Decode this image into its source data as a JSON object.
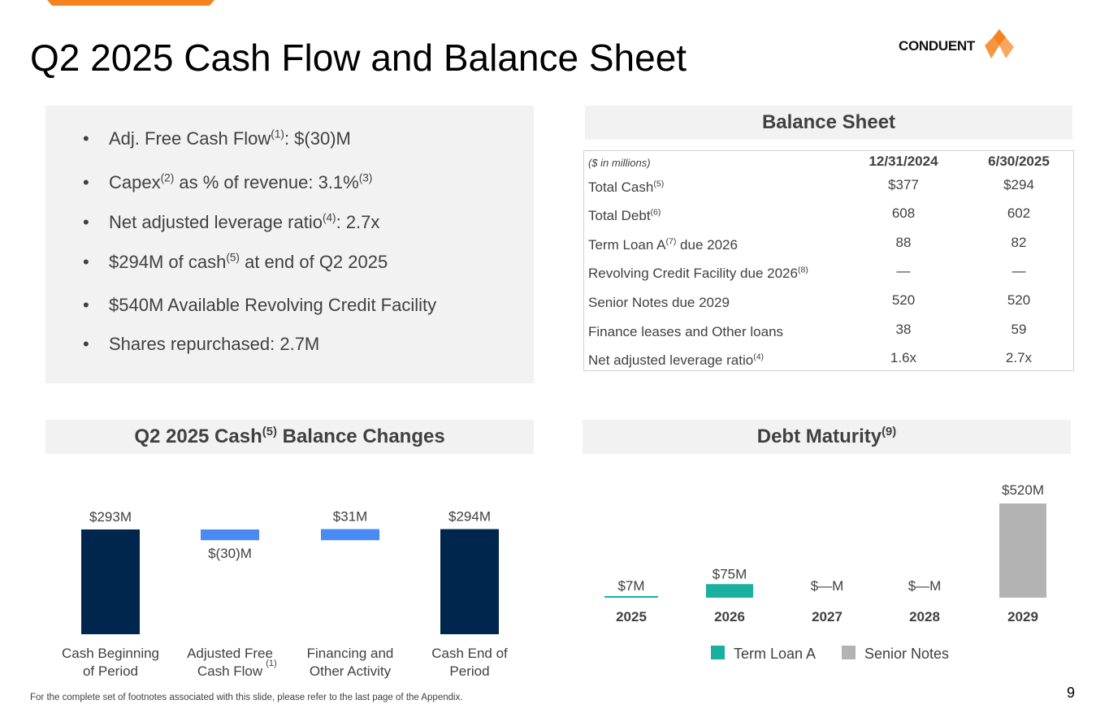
{
  "title": "Q2 2025 Cash Flow and Balance Sheet",
  "logo": {
    "text": "CONDUENT"
  },
  "bullets": [
    {
      "pre": "Adj. Free Cash Flow",
      "sup": "(1)",
      "post": ": $(30)M"
    },
    {
      "pre": "Capex",
      "sup": "(2)",
      "mid": " as % of revenue: 3.1%",
      "sup2": "(3)",
      "post": ""
    },
    {
      "pre": "Net adjusted leverage ratio",
      "sup": "(4)",
      "post": ": 2.7x"
    },
    {
      "pre": "$294M of cash",
      "sup": "(5)",
      "post": " at end of Q2 2025"
    },
    {
      "pre": "$540M Available Revolving Credit Facility",
      "sup": "",
      "post": ""
    },
    {
      "pre": "Shares repurchased: 2.7M",
      "sup": "",
      "post": ""
    }
  ],
  "balance_sheet": {
    "title": "Balance Sheet",
    "unit_note": "($ in millions)",
    "col1": "12/31/2024",
    "col2": "6/30/2025",
    "rows": [
      {
        "label": "Total Cash",
        "sup": "(5)",
        "suffix": "",
        "v1": "$377",
        "v2": "$294"
      },
      {
        "label": "Total Debt",
        "sup": "(6)",
        "suffix": "",
        "v1": "608",
        "v2": "602"
      },
      {
        "label": "Term Loan A",
        "sup": "(7)",
        "suffix": " due 2026",
        "v1": "88",
        "v2": "82"
      },
      {
        "label": "Revolving Credit Facility due 2026",
        "sup": "(8)",
        "suffix": "",
        "v1": "—",
        "v2": "—"
      },
      {
        "label": "Senior Notes due 2029",
        "sup": "",
        "suffix": "",
        "v1": "520",
        "v2": "520"
      },
      {
        "label": "Finance leases and Other loans",
        "sup": "",
        "suffix": "",
        "v1": "38",
        "v2": "59"
      },
      {
        "label": "Net adjusted leverage ratio",
        "sup": "(4)",
        "suffix": "",
        "v1": "1.6x",
        "v2": "2.7x"
      }
    ]
  },
  "cash_header": {
    "pre": "Q2 2025 Cash",
    "sup": "(5)",
    "post": " Balance Changes"
  },
  "debt_header": {
    "pre": "Debt Maturity",
    "sup": "(9)",
    "post": ""
  },
  "footnote": "For the complete set of footnotes associated with this slide, please refer to the last page of the Appendix.",
  "page_number": "9",
  "colors": {
    "accent": "#f5821f",
    "navy": "#00264d",
    "blue": "#4a8af4",
    "teal": "#1ab0a0",
    "gray": "#b3b3b3",
    "text": "#404040"
  },
  "chart_data": [
    {
      "type": "bar",
      "subtype": "waterfall",
      "title": "Q2 2025 Cash Balance Changes",
      "categories": [
        "Cash Beginning of  Period",
        "Adjusted Free Cash Flow",
        "Financing and Other Activity",
        "Cash End of Period"
      ],
      "category_lines": [
        [
          "Cash Beginning",
          "of  Period"
        ],
        [
          "Adjusted Free",
          "Cash Flow"
        ],
        [
          "Financing and",
          "Other Activity"
        ],
        [
          "Cash End of",
          "Period"
        ]
      ],
      "category_sups": [
        "",
        "(1)",
        "",
        ""
      ],
      "values": [
        293,
        -30,
        31,
        294
      ],
      "kinds": [
        "total",
        "delta",
        "delta",
        "total"
      ],
      "labels": [
        "$293M",
        "$(30)M",
        "$31M",
        "$294M"
      ]
    },
    {
      "type": "bar",
      "subtype": "stacked",
      "title": "Debt Maturity",
      "categories": [
        "2025",
        "2026",
        "2027",
        "2028",
        "2029"
      ],
      "series": [
        {
          "name": "Term Loan A",
          "values": [
            7,
            75,
            0,
            0,
            0
          ]
        },
        {
          "name": "Senior Notes",
          "values": [
            0,
            0,
            0,
            0,
            520
          ]
        }
      ],
      "labels": [
        "$7M",
        "$75M",
        "$—M",
        "$—M",
        "$520M"
      ],
      "legend": [
        "Term Loan A",
        "Senior Notes"
      ]
    }
  ]
}
